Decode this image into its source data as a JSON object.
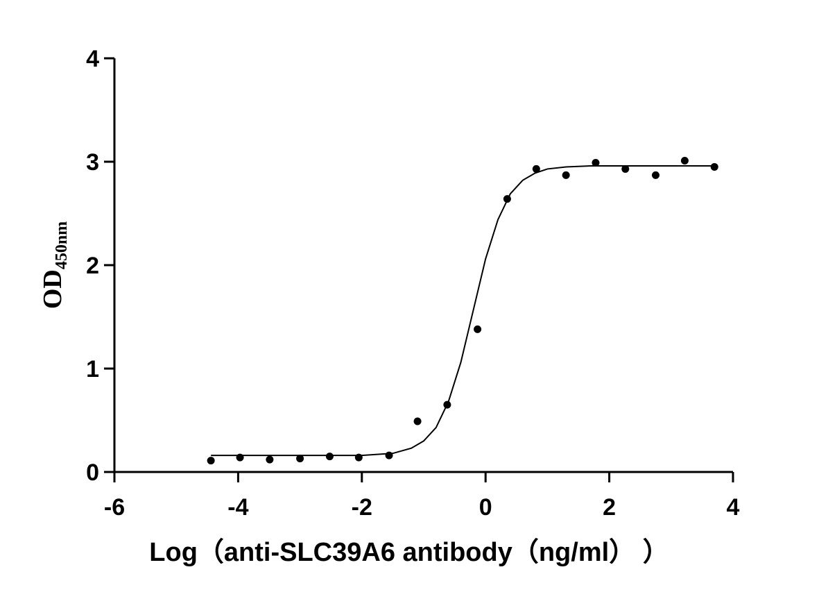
{
  "chart_data": {
    "type": "scatter",
    "x_label": "Log（anti-SLC39A6 antibody（ng/ml）  ）",
    "y_label": "OD",
    "y_label_sub": "450nm",
    "xlim": [
      -6,
      4
    ],
    "xticks": [
      -6,
      -4,
      -2,
      0,
      2,
      4
    ],
    "ylim": [
      0,
      4
    ],
    "yticks": [
      0,
      1,
      2,
      3,
      4
    ],
    "series": [
      {
        "style": "dots",
        "color": "#000000",
        "x": [
          -4.44,
          -3.97,
          -3.49,
          -3.0,
          -2.52,
          -2.05,
          -1.56,
          -1.1,
          -0.62,
          -0.13,
          0.35,
          0.82,
          1.3,
          1.78,
          2.26,
          2.75,
          3.22,
          3.7
        ],
        "values": [
          0.11,
          0.14,
          0.12,
          0.13,
          0.15,
          0.14,
          0.16,
          0.49,
          0.65,
          1.38,
          2.64,
          2.93,
          2.87,
          2.99,
          2.93,
          2.87,
          3.01,
          2.95
        ]
      },
      {
        "style": "line",
        "color": "#000000",
        "x": [
          -4.44,
          -3,
          -2,
          -1.5,
          -1.2,
          -1,
          -0.8,
          -0.6,
          -0.4,
          -0.2,
          0,
          0.2,
          0.4,
          0.6,
          0.8,
          1,
          1.3,
          1.7,
          2.5,
          3.7
        ],
        "values": [
          0.16,
          0.16,
          0.16,
          0.18,
          0.23,
          0.3,
          0.43,
          0.68,
          1.06,
          1.56,
          2.06,
          2.44,
          2.69,
          2.82,
          2.89,
          2.93,
          2.95,
          2.96,
          2.96,
          2.96
        ]
      }
    ]
  }
}
